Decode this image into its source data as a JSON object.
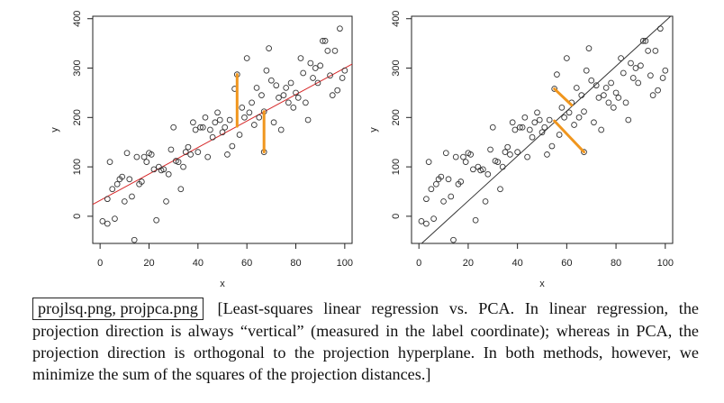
{
  "chart_data": [
    {
      "type": "scatter",
      "xlabel": "x",
      "ylabel": "y",
      "xlim": [
        -3,
        103
      ],
      "ylim": [
        -55,
        405
      ],
      "xticks": [
        "0",
        "20",
        "40",
        "60",
        "80",
        "100"
      ],
      "yticks": [
        "0",
        "100",
        "200",
        "300",
        "400"
      ],
      "line": {
        "intercept": 32,
        "slope": 2.68,
        "color": "#d62728"
      },
      "projections": [
        {
          "from": [
            56,
            287
          ],
          "to": [
            56,
            182
          ]
        },
        {
          "from": [
            67,
            130
          ],
          "to": [
            67,
            212
          ]
        }
      ],
      "projection_color": "#f0961e"
    },
    {
      "type": "scatter",
      "xlabel": "x",
      "ylabel": "y",
      "xlim": [
        -3,
        103
      ],
      "ylim": [
        -55,
        405
      ],
      "xticks": [
        "0",
        "20",
        "40",
        "60",
        "80",
        "100"
      ],
      "yticks": [
        "0",
        "100",
        "200",
        "300",
        "400"
      ],
      "line": {
        "intercept": -60,
        "slope": 4.55,
        "color": "#333333"
      },
      "projections": [
        {
          "from": [
            55,
            258
          ],
          "to": [
            62,
            225
          ]
        },
        {
          "from": [
            67,
            130
          ],
          "to": [
            55,
            193
          ]
        }
      ],
      "projection_color": "#f0961e"
    }
  ],
  "points": [
    [
      1,
      -10
    ],
    [
      3,
      -15
    ],
    [
      3,
      35
    ],
    [
      4,
      110
    ],
    [
      5,
      55
    ],
    [
      6,
      -5
    ],
    [
      7,
      65
    ],
    [
      8,
      75
    ],
    [
      9,
      80
    ],
    [
      10,
      30
    ],
    [
      11,
      128
    ],
    [
      12,
      75
    ],
    [
      13,
      40
    ],
    [
      14,
      -48
    ],
    [
      15,
      120
    ],
    [
      16,
      65
    ],
    [
      17,
      70
    ],
    [
      18,
      120
    ],
    [
      19,
      110
    ],
    [
      20,
      128
    ],
    [
      21,
      125
    ],
    [
      22,
      95
    ],
    [
      23,
      -8
    ],
    [
      24,
      100
    ],
    [
      25,
      93
    ],
    [
      26,
      95
    ],
    [
      27,
      30
    ],
    [
      28,
      85
    ],
    [
      29,
      135
    ],
    [
      30,
      180
    ],
    [
      31,
      112
    ],
    [
      32,
      110
    ],
    [
      33,
      55
    ],
    [
      34,
      100
    ],
    [
      35,
      130
    ],
    [
      36,
      140
    ],
    [
      37,
      125
    ],
    [
      38,
      190
    ],
    [
      39,
      175
    ],
    [
      40,
      130
    ],
    [
      41,
      180
    ],
    [
      42,
      180
    ],
    [
      43,
      200
    ],
    [
      44,
      120
    ],
    [
      45,
      175
    ],
    [
      46,
      160
    ],
    [
      47,
      190
    ],
    [
      48,
      210
    ],
    [
      49,
      195
    ],
    [
      50,
      170
    ],
    [
      51,
      180
    ],
    [
      52,
      125
    ],
    [
      53,
      195
    ],
    [
      54,
      142
    ],
    [
      55,
      258
    ],
    [
      56,
      287
    ],
    [
      57,
      165
    ],
    [
      58,
      220
    ],
    [
      59,
      200
    ],
    [
      60,
      320
    ],
    [
      61,
      210
    ],
    [
      62,
      230
    ],
    [
      63,
      185
    ],
    [
      64,
      260
    ],
    [
      65,
      200
    ],
    [
      66,
      245
    ],
    [
      67,
      130
    ],
    [
      68,
      295
    ],
    [
      69,
      340
    ],
    [
      70,
      275
    ],
    [
      71,
      190
    ],
    [
      72,
      265
    ],
    [
      73,
      240
    ],
    [
      74,
      175
    ],
    [
      75,
      245
    ],
    [
      76,
      260
    ],
    [
      77,
      230
    ],
    [
      78,
      270
    ],
    [
      79,
      220
    ],
    [
      80,
      250
    ],
    [
      81,
      240
    ],
    [
      82,
      320
    ],
    [
      83,
      290
    ],
    [
      84,
      230
    ],
    [
      85,
      195
    ],
    [
      86,
      310
    ],
    [
      87,
      280
    ],
    [
      88,
      300
    ],
    [
      89,
      270
    ],
    [
      90,
      305
    ],
    [
      91,
      355
    ],
    [
      92,
      355
    ],
    [
      93,
      335
    ],
    [
      94,
      285
    ],
    [
      95,
      245
    ],
    [
      96,
      335
    ],
    [
      97,
      255
    ],
    [
      98,
      380
    ],
    [
      99,
      280
    ],
    [
      100,
      295
    ],
    [
      67,
      212
    ]
  ],
  "caption": {
    "filename_box": "projlsq.png, projpca.png",
    "text": "[Least-squares linear regression vs. PCA. In linear regression, the projection direction is always “vertical” (measured in the label coordinate); whereas in PCA, the projection direction is orthogonal to the projection hyperplane. In both methods, however, we minimize the sum of the squares of the projection distances.]"
  }
}
